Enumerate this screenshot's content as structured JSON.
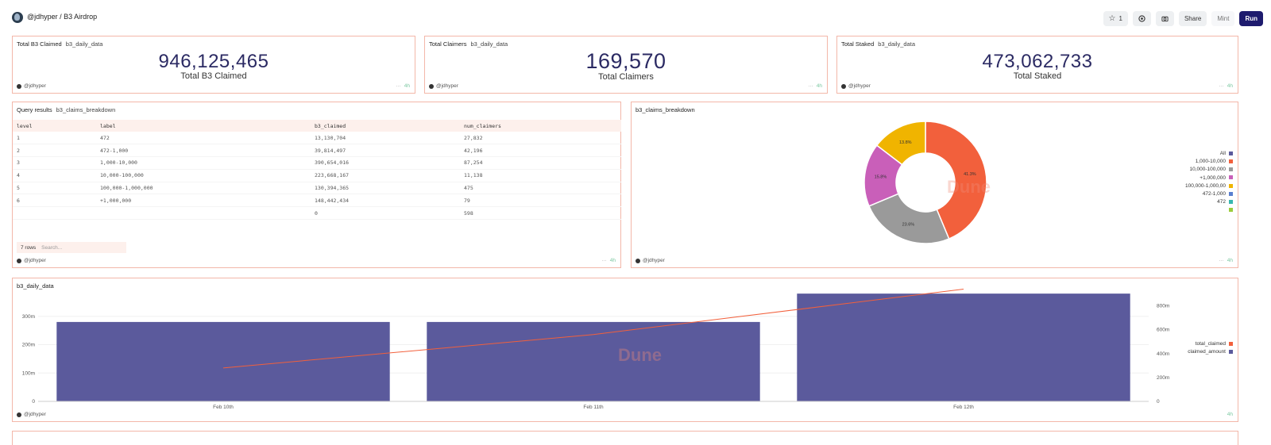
{
  "header": {
    "title": "@jdhyper / B3 Airdrop",
    "star_count": "1",
    "share_label": "Share",
    "mint_label": "Mint",
    "run_label": "Run"
  },
  "counters": [
    {
      "title": "Total B3 Claimed",
      "query": "b3_daily_data",
      "value": "946,125,465",
      "label": "Total B3 Claimed",
      "author": "@jdhyper",
      "badge": "4h"
    },
    {
      "title": "Total Claimers",
      "query": "b3_daily_data",
      "value": "169,570",
      "label": "Total Claimers",
      "author": "@jdhyper",
      "badge": "4h"
    },
    {
      "title": "Total Staked",
      "query": "b3_daily_data",
      "value": "473,062,733",
      "label": "Total Staked",
      "author": "@jdhyper",
      "badge": "4h"
    }
  ],
  "table_card": {
    "title": "Query results",
    "query": "b3_claims_breakdown",
    "columns": [
      "level",
      "label",
      "b3_claimed",
      "num_claimers"
    ],
    "rows": [
      [
        "1",
        "472",
        "13,130,704",
        "27,832"
      ],
      [
        "2",
        "472-1,000",
        "39,814,497",
        "42,196"
      ],
      [
        "3",
        "1,000-10,000",
        "390,654,016",
        "87,254"
      ],
      [
        "4",
        "10,000-100,000",
        "223,668,167",
        "11,138"
      ],
      [
        "5",
        "100,000-1,000,000",
        "130,394,365",
        "475"
      ],
      [
        "6",
        "+1,000,000",
        "148,442,434",
        "79"
      ],
      [
        "",
        "",
        "0",
        "598"
      ]
    ],
    "rows_count": "7 rows",
    "search_placeholder": "Search...",
    "author": "@jdhyper",
    "badge": "4h"
  },
  "pie_card": {
    "title": "b3_claims_breakdown",
    "author": "@jdhyper",
    "badge": "4h",
    "watermark": "Dune",
    "legend": [
      {
        "label": "All",
        "color": "#5b5a9c"
      },
      {
        "label": "1,000-10,000",
        "color": "#f2603c"
      },
      {
        "label": "10,000-100,000",
        "color": "#9a9a9a"
      },
      {
        "label": "+1,000,000",
        "color": "#c95fb9"
      },
      {
        "label": "100,000-1,000,00",
        "color": "#f0b400"
      },
      {
        "label": "472-1,000",
        "color": "#5a7fcf"
      },
      {
        "label": "472",
        "color": "#38b6b0"
      },
      {
        "label": "",
        "color": "#9ccc3c"
      }
    ]
  },
  "bar_card": {
    "title": "b3_daily_data",
    "author": "@jdhyper",
    "badge": "4h",
    "watermark": "Dune",
    "legend": [
      {
        "label": "total_claimed",
        "color": "#f2603c"
      },
      {
        "label": "claimed_amount",
        "color": "#5b5a9c"
      }
    ]
  },
  "chart_data": [
    {
      "type": "pie",
      "title": "b3_claims_breakdown",
      "categories": [
        "1,000-10,000",
        "10,000-100,000",
        "+1,000,000",
        "100,000-1,000,00"
      ],
      "values": [
        41.3,
        23.6,
        15.8,
        13.8
      ],
      "value_labels": [
        "41.3%",
        "23.6%",
        "15.8%",
        "13.8%"
      ],
      "colors": [
        "#f2603c",
        "#9a9a9a",
        "#c95fb9",
        "#f0b400"
      ],
      "donut": true
    },
    {
      "type": "bar",
      "title": "b3_daily_data",
      "categories": [
        "Feb 10th",
        "Feb 11th",
        "Feb 12th"
      ],
      "series": [
        {
          "name": "claimed_amount",
          "type": "bar",
          "axis": "left",
          "values": [
            280000000,
            280000000,
            380000000
          ],
          "color": "#5b5a9c"
        },
        {
          "name": "total_claimed",
          "type": "line",
          "axis": "right",
          "values": [
            280000000,
            560000000,
            940000000
          ],
          "color": "#f2603c"
        }
      ],
      "yticks_left": [
        "0",
        "100m",
        "200m",
        "300m"
      ],
      "yticks_right": [
        "0",
        "200m",
        "400m",
        "600m",
        "800m"
      ],
      "ylim_left": [
        0,
        400000000
      ],
      "ylim_right": [
        0,
        950000000
      ],
      "legend_position": "right"
    }
  ]
}
